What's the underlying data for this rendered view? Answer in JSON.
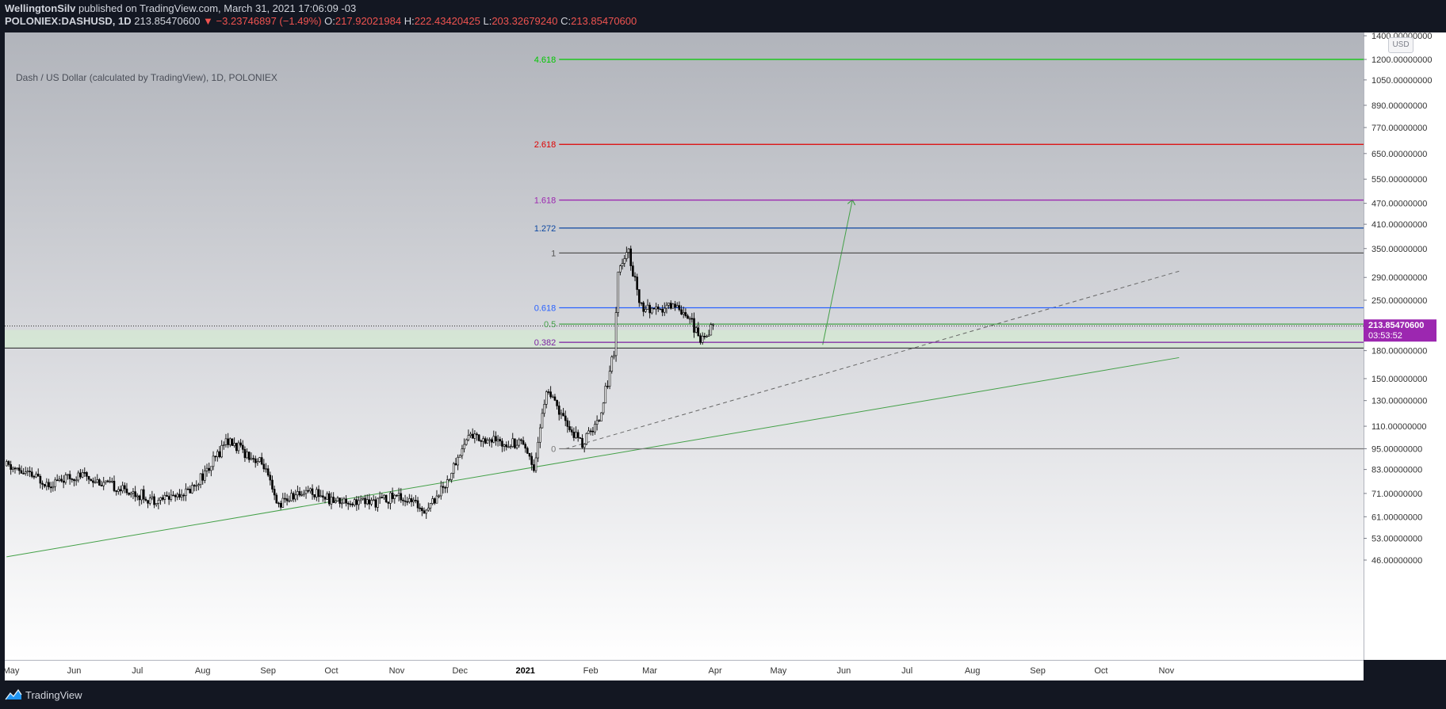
{
  "header": {
    "author": "WellingtonSilv",
    "published_text": "published on TradingView.com, March 31, 2021 17:06:09 -03",
    "symbol": "POLONIEX:DASHUSD, 1D",
    "last": "213.85470600",
    "arrow": "▼",
    "change": "−3.23746897 (−1.49%)",
    "open_label": "O:",
    "open": "217.92021984",
    "high_label": "H:",
    "high": "222.43420425",
    "low_label": "L:",
    "low": "203.32679240",
    "close_label": "C:",
    "close": "213.85470600"
  },
  "chart_title": "Dash / US Dollar (calculated by TradingView), 1D, POLONIEX",
  "currency": "USD",
  "price_tag": {
    "price": "213.85470600",
    "countdown": "03:53:52",
    "color": "#9c27b0"
  },
  "footer": {
    "brand": "TradingView"
  },
  "colors": {
    "candle_body": "#000000",
    "fib_4618": "#00c800",
    "fib_2618": "#e00000",
    "fib_1618": "#9c27b0",
    "fib_1272": "#0d47a1",
    "fib_1": "#555555",
    "fib_0618": "#2962ff",
    "fib_05": "#43a047",
    "fib_0382": "#7b1fa2",
    "fib_0": "#777777",
    "trendline": "#43a047"
  },
  "chart_data": {
    "type": "candlestick",
    "scale": "log",
    "ylim": [
      44,
      1450
    ],
    "y_ticks": [
      "1400.00000000",
      "1200.00000000",
      "1050.00000000",
      "890.00000000",
      "770.00000000",
      "650.00000000",
      "550.00000000",
      "470.00000000",
      "410.00000000",
      "350.00000000",
      "290.00000000",
      "250.00000000",
      "180.00000000",
      "150.00000000",
      "130.00000000",
      "110.00000000",
      "95.00000000",
      "83.00000000",
      "71.00000000",
      "61.00000000",
      "53.00000000",
      "46.00000000"
    ],
    "x_ticks": [
      {
        "label": "May",
        "date": "2020-05-01"
      },
      {
        "label": "Jun",
        "date": "2020-06-01"
      },
      {
        "label": "Jul",
        "date": "2020-07-01"
      },
      {
        "label": "Aug",
        "date": "2020-08-01"
      },
      {
        "label": "Sep",
        "date": "2020-09-01"
      },
      {
        "label": "Oct",
        "date": "2020-10-01"
      },
      {
        "label": "Nov",
        "date": "2020-11-01"
      },
      {
        "label": "Dec",
        "date": "2020-12-01"
      },
      {
        "label": "2021",
        "date": "2021-01-01"
      },
      {
        "label": "Feb",
        "date": "2021-02-01"
      },
      {
        "label": "Mar",
        "date": "2021-03-01"
      },
      {
        "label": "Apr",
        "date": "2021-04-01"
      },
      {
        "label": "May",
        "date": "2021-05-01"
      },
      {
        "label": "Jun",
        "date": "2021-06-01"
      },
      {
        "label": "Jul",
        "date": "2021-07-01"
      },
      {
        "label": "Aug",
        "date": "2021-08-01"
      },
      {
        "label": "Sep",
        "date": "2021-09-01"
      },
      {
        "label": "Oct",
        "date": "2021-10-01"
      },
      {
        "label": "Nov",
        "date": "2021-11-01"
      }
    ],
    "price_path": [
      [
        "2020-04-30",
        85
      ],
      [
        "2020-05-20",
        76
      ],
      [
        "2020-06-05",
        80
      ],
      [
        "2020-06-20",
        74
      ],
      [
        "2020-07-10",
        68
      ],
      [
        "2020-07-25",
        72
      ],
      [
        "2020-08-05",
        85
      ],
      [
        "2020-08-12",
        101
      ],
      [
        "2020-08-20",
        94
      ],
      [
        "2020-08-30",
        85
      ],
      [
        "2020-09-05",
        66
      ],
      [
        "2020-09-20",
        73
      ],
      [
        "2020-10-01",
        68
      ],
      [
        "2020-10-20",
        67
      ],
      [
        "2020-11-01",
        70
      ],
      [
        "2020-11-15",
        64
      ],
      [
        "2020-11-25",
        77
      ],
      [
        "2020-12-05",
        104
      ],
      [
        "2020-12-20",
        99
      ],
      [
        "2020-12-31",
        100
      ],
      [
        "2021-01-05",
        84
      ],
      [
        "2021-01-11",
        140
      ],
      [
        "2021-01-20",
        112
      ],
      [
        "2021-01-28",
        98
      ],
      [
        "2021-02-05",
        115
      ],
      [
        "2021-02-12",
        180
      ],
      [
        "2021-02-14",
        300
      ],
      [
        "2021-02-19",
        340
      ],
      [
        "2021-02-25",
        240
      ],
      [
        "2021-03-05",
        230
      ],
      [
        "2021-03-12",
        245
      ],
      [
        "2021-03-20",
        225
      ],
      [
        "2021-03-25",
        190
      ],
      [
        "2021-03-31",
        214
      ]
    ],
    "fib_levels": [
      {
        "label": "4.618",
        "price": 1200,
        "color": "#00c800"
      },
      {
        "label": "2.618",
        "price": 690,
        "color": "#e00000"
      },
      {
        "label": "1.618",
        "price": 480,
        "color": "#9c27b0"
      },
      {
        "label": "1.272",
        "price": 400,
        "color": "#0d47a1"
      },
      {
        "label": "1",
        "price": 340,
        "color": "#555555"
      },
      {
        "label": "0.618",
        "price": 238,
        "color": "#2962ff"
      },
      {
        "label": "0.5",
        "price": 214,
        "color": "#43a047"
      },
      {
        "label": "0.382",
        "price": 190,
        "color": "#7b1fa2"
      },
      {
        "label": "0",
        "price": 95,
        "color": "#777777"
      }
    ],
    "zone": {
      "price_low": 183,
      "price_high": 206
    },
    "trendline": {
      "from": [
        "2020-04-30",
        47
      ],
      "to": [
        "2021-11-07",
        172
      ]
    },
    "dashed_line": {
      "from": [
        "2021-01-20",
        95
      ],
      "to": [
        "2021-11-07",
        302
      ]
    },
    "projection_arrow": {
      "from": [
        "2021-05-22",
        187
      ],
      "to": [
        "2021-06-05",
        478
      ]
    }
  }
}
